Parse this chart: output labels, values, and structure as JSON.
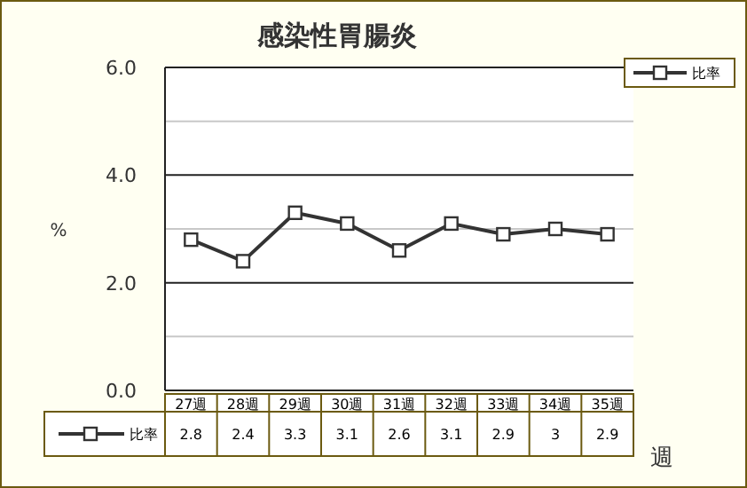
{
  "chart_data": {
    "type": "line",
    "title": "感染性胃腸炎",
    "xlabel": "週",
    "ylabel": "%",
    "categories": [
      "27週",
      "28週",
      "29週",
      "30週",
      "31週",
      "32週",
      "33週",
      "34週",
      "35週"
    ],
    "series": [
      {
        "name": "比率",
        "color": "#333333",
        "values": [
          2.8,
          2.4,
          3.3,
          3.1,
          2.6,
          3.1,
          2.9,
          3.0,
          2.9
        ]
      }
    ],
    "ylim": [
      0,
      6
    ],
    "yticks": [
      {
        "value": 0,
        "label": "0.0"
      },
      {
        "value": 1,
        "label": null
      },
      {
        "value": 2,
        "label": "2.0"
      },
      {
        "value": 3,
        "label": null
      },
      {
        "value": 4,
        "label": "4.0"
      },
      {
        "value": 5,
        "label": null
      },
      {
        "value": 6,
        "label": "6.0"
      }
    ],
    "grid": true,
    "legend": "top right",
    "marker": "square",
    "line_style": "solid",
    "data_labels": true
  }
}
